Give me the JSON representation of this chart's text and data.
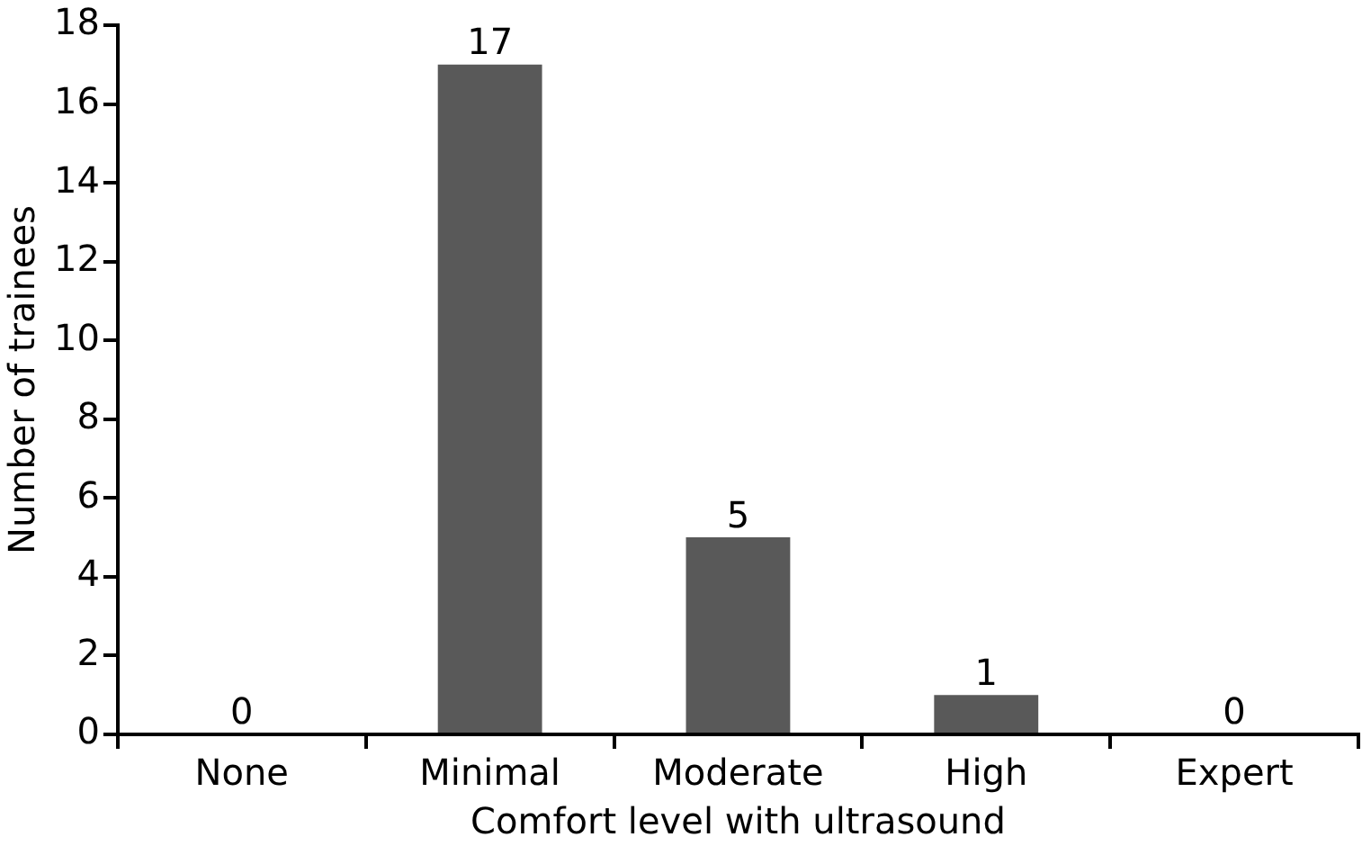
{
  "chart_data": {
    "type": "bar",
    "xlabel": "Comfort level with ultrasound",
    "ylabel": "Number of trainees",
    "categories": [
      "None",
      "Minimal",
      "Moderate",
      "High",
      "Expert"
    ],
    "values": [
      0,
      17,
      5,
      1,
      0
    ],
    "color": "#595959",
    "ylim": [
      0,
      18
    ],
    "yticks": [
      0,
      2,
      4,
      6,
      8,
      10,
      12,
      14,
      16,
      18
    ],
    "grid": false,
    "legend": false,
    "data_labels": true
  }
}
